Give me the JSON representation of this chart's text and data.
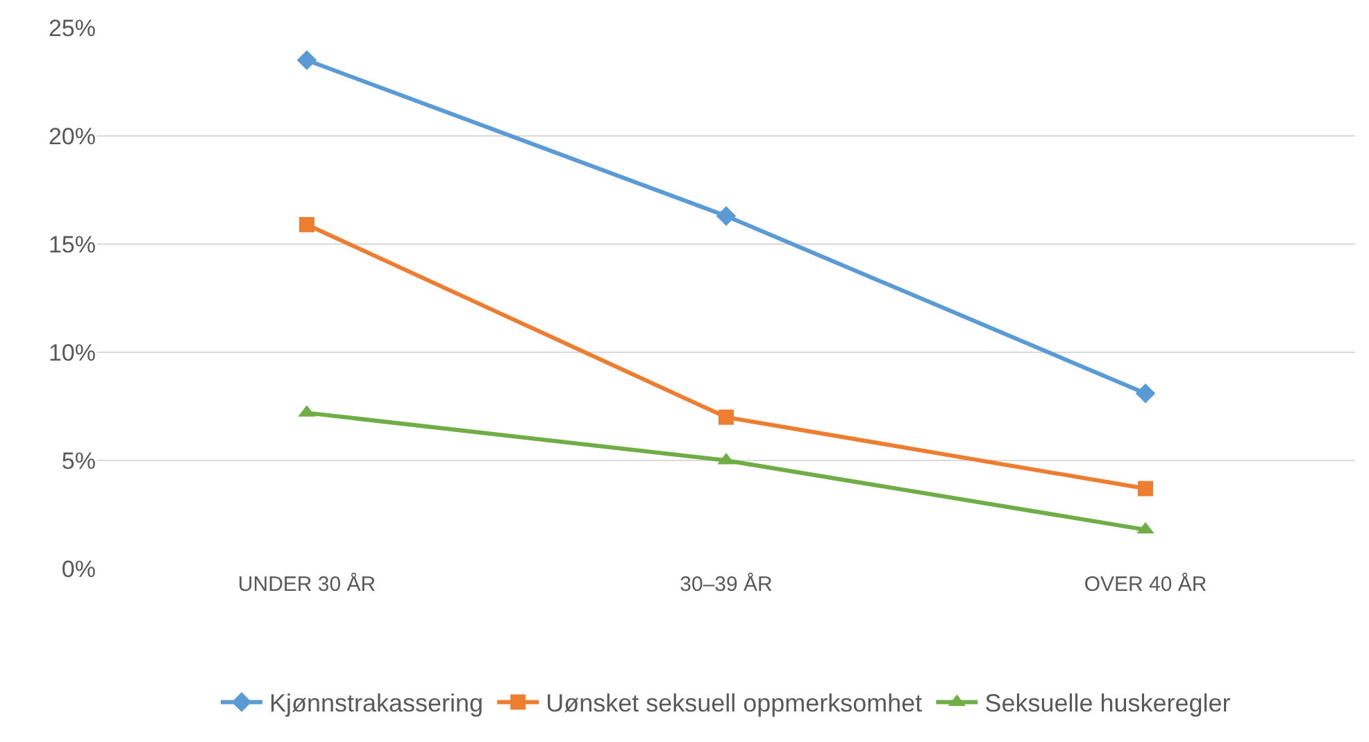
{
  "chart_data": {
    "type": "line",
    "categories": [
      "UNDER 30 ÅR",
      "30–39 ÅR",
      "OVER 40 ÅR"
    ],
    "series": [
      {
        "name": "Kjønnstrakassering",
        "color": "#5b9bd5",
        "marker": "diamond",
        "values": [
          23.5,
          16.3,
          8.1
        ]
      },
      {
        "name": "Uønsket seksuell oppmerksomhet",
        "color": "#ed7d31",
        "marker": "square",
        "values": [
          15.9,
          7.0,
          3.7
        ]
      },
      {
        "name": "Seksuelle huskeregler",
        "color": "#70ad47",
        "marker": "triangle",
        "values": [
          7.2,
          5.0,
          1.8
        ]
      }
    ],
    "ylim": [
      0,
      25
    ],
    "yticks": [
      {
        "value": 0,
        "label": "0%"
      },
      {
        "value": 5,
        "label": "5%"
      },
      {
        "value": 10,
        "label": "10%"
      },
      {
        "value": 15,
        "label": "15%"
      },
      {
        "value": 20,
        "label": "20%"
      },
      {
        "value": 25,
        "label": "25%"
      }
    ],
    "grid": "y",
    "legend": "bottom",
    "line_style": "solid"
  }
}
